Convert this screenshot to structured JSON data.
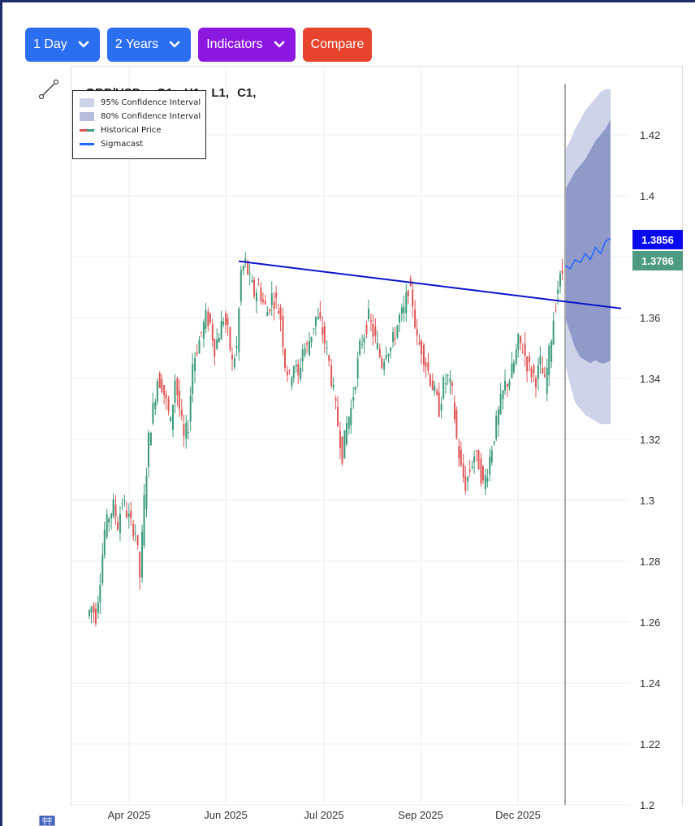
{
  "toolbar": {
    "interval_label": "1 Day",
    "range_label": "2 Years",
    "indicators_label": "Indicators",
    "compare_label": "Compare",
    "colors": {
      "blue": "#2b6ff0",
      "purple": "#8c18e0",
      "red": "#e8432d"
    }
  },
  "icons": {
    "draw_tool": "trendline-tool-icon",
    "dropdown": "chevron-down-icon",
    "bottom": "basket-icon"
  },
  "ohlc": {
    "symbol": "GBP/USD :",
    "open": "O1,",
    "high": "H1,",
    "low": "L1,",
    "close": "C1,"
  },
  "legend": {
    "ci95": "95% Confidence Interval",
    "ci80": "80% Confidence Interval",
    "historical": "Historical Price",
    "sigmacast": "Sigmacast"
  },
  "price_tags": {
    "forecast": "1.3856",
    "last": "1.3786",
    "forecast_color": "#0a0af0",
    "last_color": "#4f9a83"
  },
  "chart_data": {
    "type": "candlestick",
    "title": "",
    "x_ticks": [
      "Apr 2025",
      "Jun 2025",
      "Jul 2025",
      "Sep 2025",
      "Dec 2025"
    ],
    "y_ticks": [
      "1.2",
      "1.22",
      "1.24",
      "1.26",
      "1.28",
      "1.3",
      "1.32",
      "1.34",
      "1.36",
      "1.38",
      "1.4",
      "1.42"
    ],
    "ylim": [
      1.2,
      1.435
    ],
    "grid": true,
    "historical_close_path": [
      1.265,
      1.262,
      1.275,
      1.29,
      1.295,
      1.298,
      1.292,
      1.3,
      1.296,
      1.292,
      1.29,
      1.275,
      1.3,
      1.32,
      1.33,
      1.34,
      1.338,
      1.332,
      1.325,
      1.34,
      1.33,
      1.32,
      1.325,
      1.345,
      1.35,
      1.355,
      1.36,
      1.358,
      1.35,
      1.355,
      1.36,
      1.355,
      1.345,
      1.35,
      1.375,
      1.378,
      1.372,
      1.368,
      1.37,
      1.365,
      1.362,
      1.367,
      1.365,
      1.36,
      1.345,
      1.34,
      1.345,
      1.34,
      1.35,
      1.35,
      1.355,
      1.36,
      1.358,
      1.352,
      1.345,
      1.335,
      1.325,
      1.315,
      1.325,
      1.33,
      1.34,
      1.35,
      1.355,
      1.36,
      1.355,
      1.35,
      1.345,
      1.35,
      1.35,
      1.355,
      1.36,
      1.362,
      1.37,
      1.365,
      1.352,
      1.35,
      1.345,
      1.34,
      1.335,
      1.33,
      1.338,
      1.34,
      1.335,
      1.32,
      1.31,
      1.305,
      1.31,
      1.315,
      1.312,
      1.305,
      1.31,
      1.318,
      1.325,
      1.332,
      1.338,
      1.34,
      1.345,
      1.352,
      1.35,
      1.345,
      1.342,
      1.34,
      1.345,
      1.338,
      1.348,
      1.36,
      1.37,
      1.375
    ],
    "trendline": {
      "start": [
        "Jun 2025",
        1.3785
      ],
      "end": [
        "after Dec 2025",
        1.363
      ]
    },
    "forecast": {
      "center": [
        1.377,
        1.376,
        1.379,
        1.378,
        1.381,
        1.379,
        1.383,
        1.381,
        1.385,
        1.386
      ],
      "ci80_upper": [
        1.402,
        1.405,
        1.408,
        1.41,
        1.412,
        1.415,
        1.418,
        1.42,
        1.422,
        1.425
      ],
      "ci80_lower": [
        1.36,
        1.355,
        1.35,
        1.347,
        1.346,
        1.345,
        1.346,
        1.345,
        1.345,
        1.346
      ],
      "ci95_upper": [
        1.415,
        1.418,
        1.422,
        1.425,
        1.428,
        1.43,
        1.432,
        1.434,
        1.435,
        1.435
      ],
      "ci95_lower": [
        1.345,
        1.338,
        1.332,
        1.33,
        1.328,
        1.327,
        1.326,
        1.325,
        1.325,
        1.325
      ]
    },
    "colors": {
      "up": "#3a9a7a",
      "down": "#e05555",
      "ci95": "#cfd3ea",
      "ci80": "#8f9ac9",
      "sigmacast": "#2266ff",
      "trend": "#0a14c8",
      "divider": "#aaaaaa"
    }
  }
}
